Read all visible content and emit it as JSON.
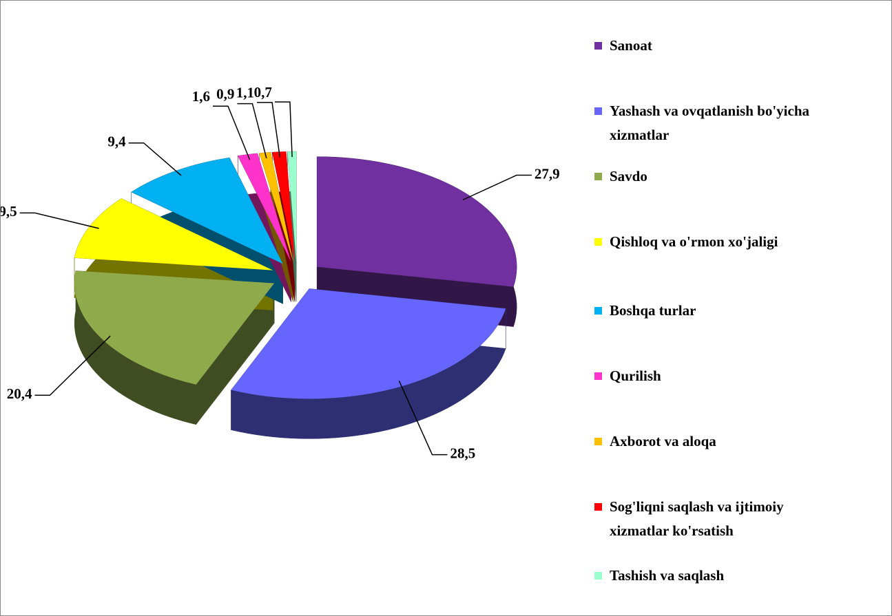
{
  "chart_data": {
    "type": "pie",
    "categories": [
      "Sanoat",
      "Yashash va ovqatlanish bo'yicha xizmatlar",
      "Savdo",
      "Qishloq va o'rmon xo'jaligi",
      "Boshqa turlar",
      "Qurilish",
      "Axborot va aloqa",
      "Sog'liqni saqlash va ijtimoiy xizmatlar ko'rsatish",
      "Tashish va saqlash"
    ],
    "values": [
      27.9,
      28.5,
      20.4,
      9.5,
      9.4,
      1.6,
      0.9,
      1.1,
      0.7
    ],
    "value_labels": [
      "27,9",
      "28,5",
      "20,4",
      "9,5",
      "9,4",
      "1,6",
      "0,9",
      "1,1",
      "0,7"
    ],
    "colors": [
      "#7030a0",
      "#6666ff",
      "#8faa4b",
      "#ffff00",
      "#00b0f0",
      "#ff33cc",
      "#ffc000",
      "#ff0000",
      "#99ffcc"
    ],
    "legend": "right"
  }
}
